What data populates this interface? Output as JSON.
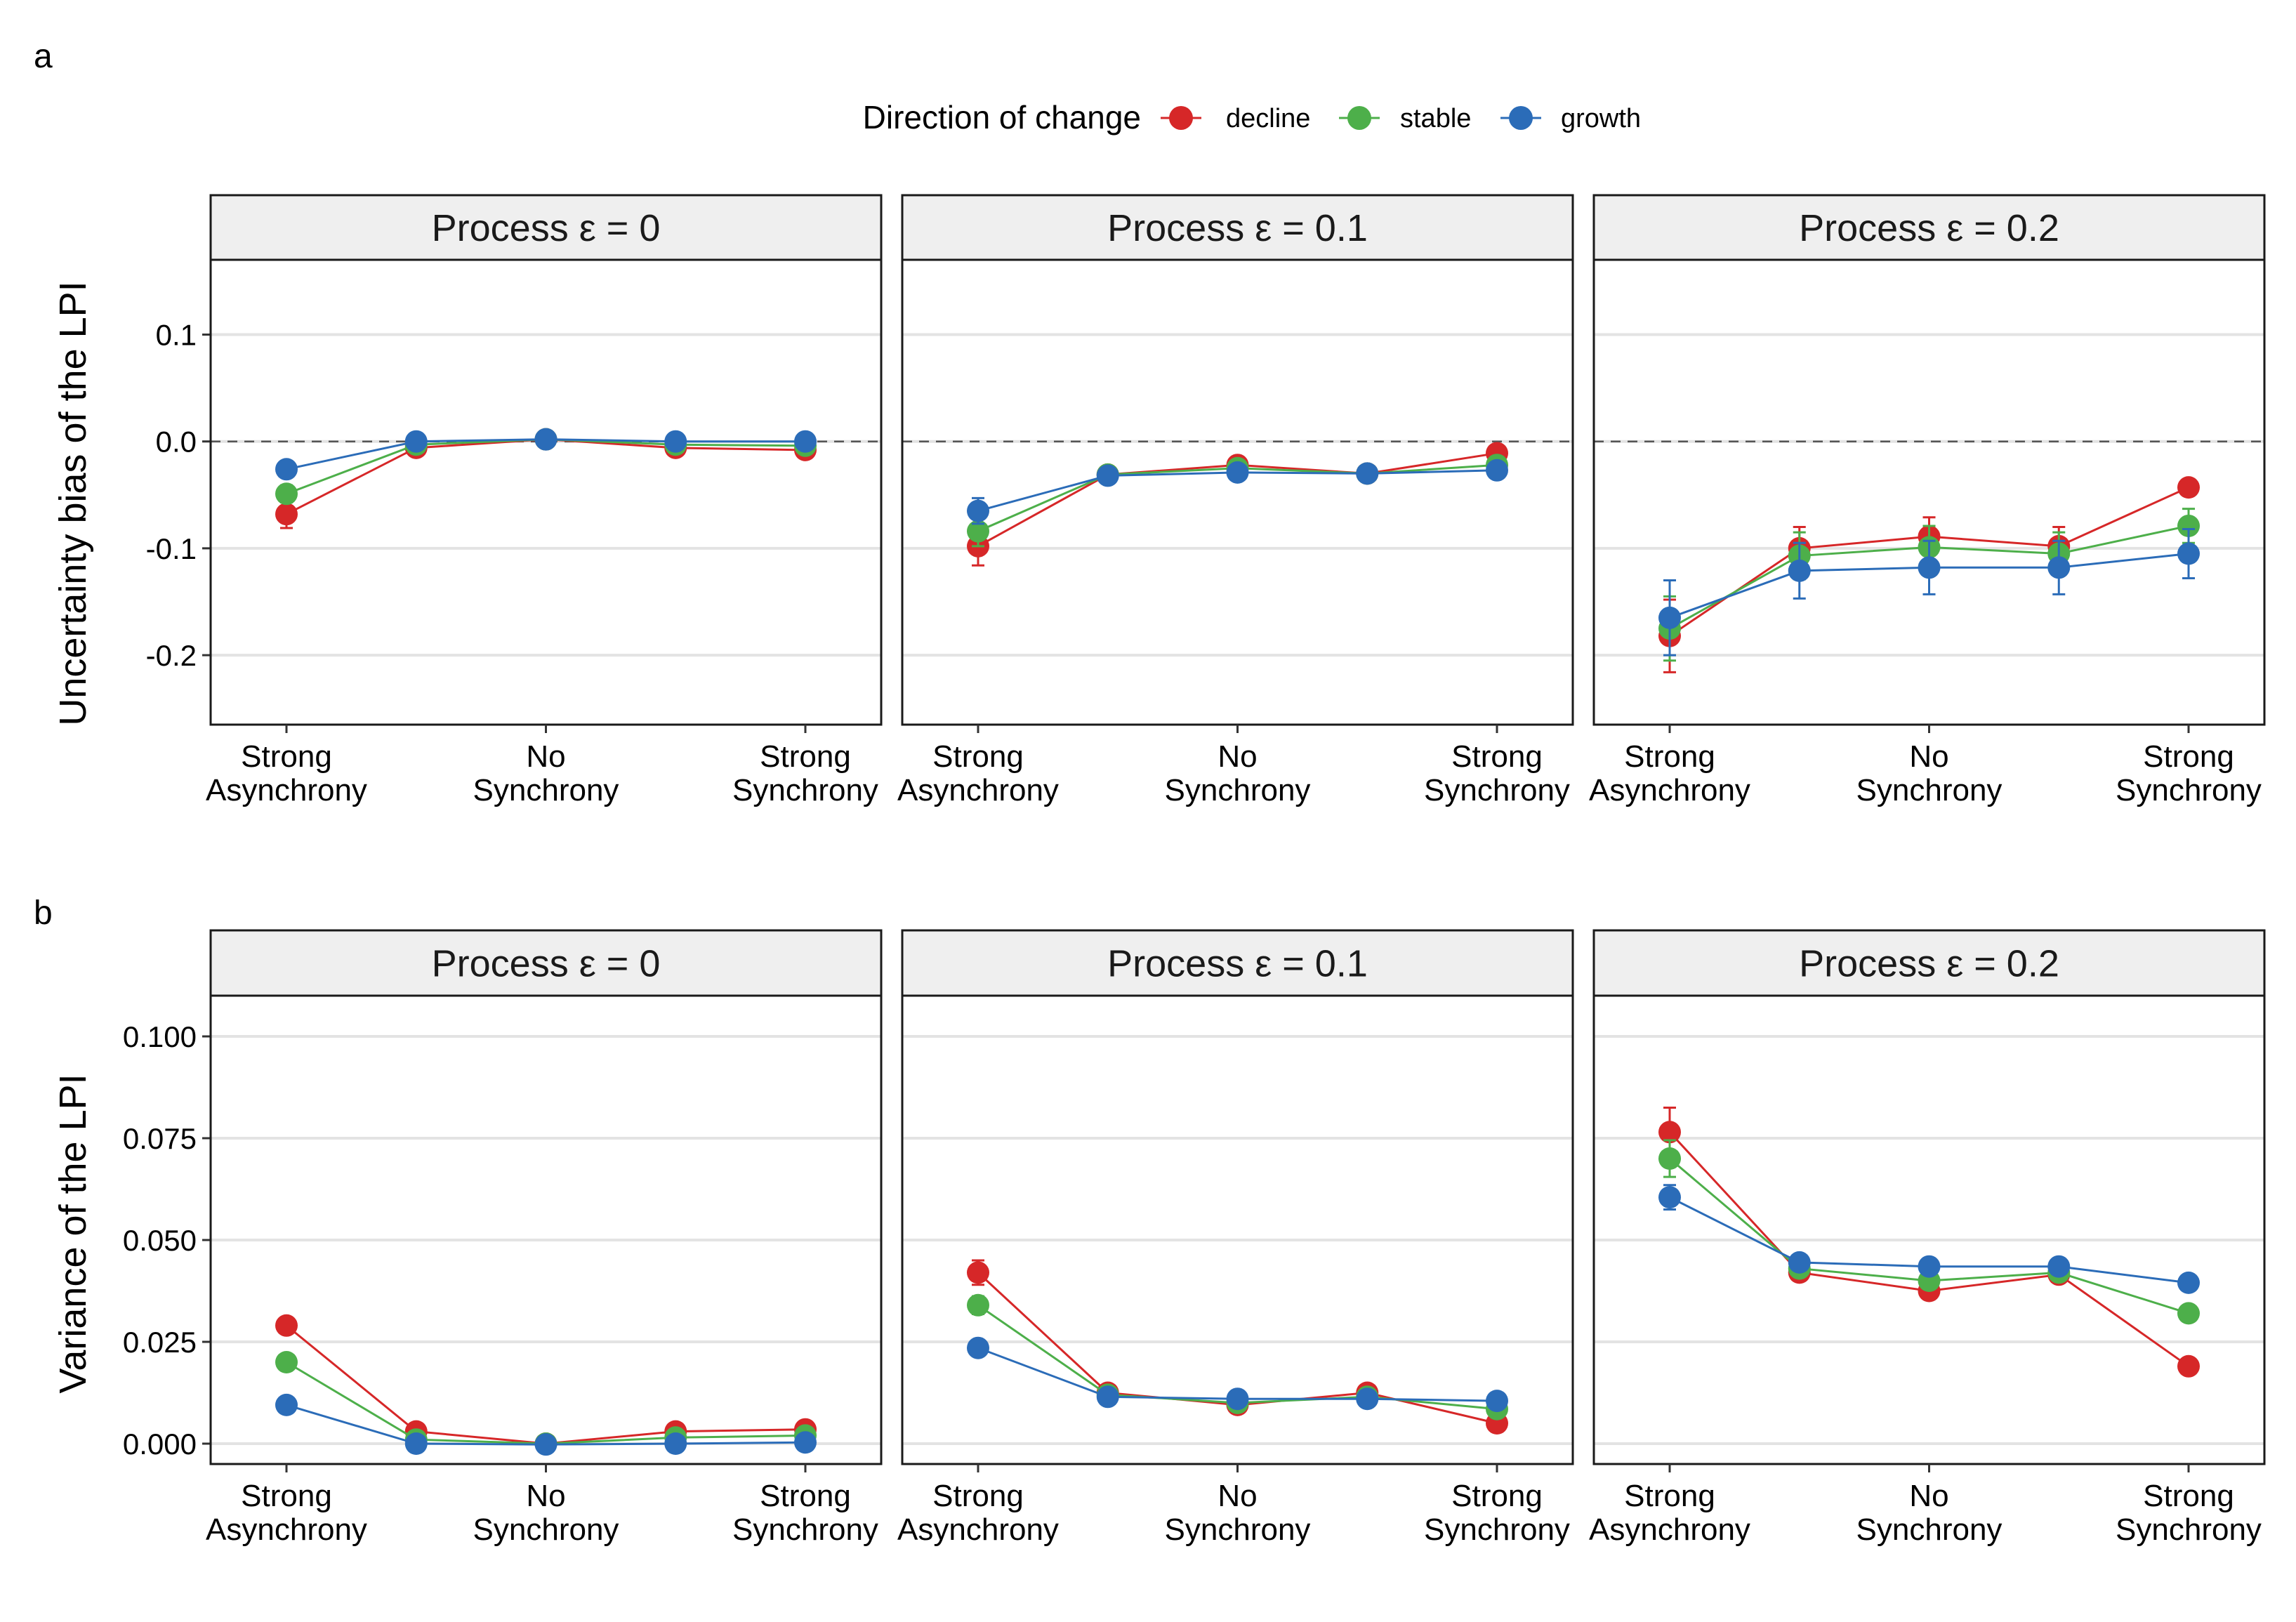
{
  "legend": {
    "title": "Direction of change",
    "items": [
      {
        "label": "decline",
        "color": "#D62728"
      },
      {
        "label": "stable",
        "color": "#4DAF4A"
      },
      {
        "label": "growth",
        "color": "#2B6CB8"
      }
    ]
  },
  "panel_labels": [
    "a",
    "b"
  ],
  "facet_titles": [
    "Process ε = 0",
    "Process ε = 0.1",
    "Process ε = 0.2"
  ],
  "x_tick_labels": [
    {
      "line1": "Strong",
      "line2": "Asynchrony"
    },
    {
      "line1": "No",
      "line2": "Synchrony"
    },
    {
      "line1": "Strong",
      "line2": "Synchrony"
    }
  ],
  "chart_data": [
    {
      "type": "line",
      "panel": "a",
      "ylabel": "Uncertainty bias of the LPI",
      "ylim": [
        -0.265,
        0.17
      ],
      "yticks": [
        0.1,
        0.0,
        -0.1,
        -0.2
      ],
      "ytick_labels": [
        "0.1",
        "0.0",
        "-0.1",
        "-0.2"
      ],
      "reference_line": 0,
      "x": [
        1,
        2,
        3,
        4,
        5
      ],
      "facets": [
        {
          "title": "Process ε = 0",
          "series": [
            {
              "name": "decline",
              "values": [
                -0.068,
                -0.006,
                0.002,
                -0.006,
                -0.008
              ],
              "err": [
                0.013,
                0.003,
                0.002,
                0.003,
                0.003
              ]
            },
            {
              "name": "stable",
              "values": [
                -0.049,
                -0.003,
                0.002,
                -0.003,
                -0.004
              ],
              "err": [
                0.008,
                0.002,
                0.002,
                0.002,
                0.002
              ]
            },
            {
              "name": "growth",
              "values": [
                -0.026,
                0.0,
                0.002,
                0.0,
                0.0
              ],
              "err": [
                0.006,
                0.002,
                0.002,
                0.002,
                0.002
              ]
            }
          ]
        },
        {
          "title": "Process ε = 0.1",
          "series": [
            {
              "name": "decline",
              "values": [
                -0.098,
                -0.031,
                -0.022,
                -0.03,
                -0.011
              ],
              "err": [
                0.018,
                0.004,
                0.004,
                0.004,
                0.004
              ]
            },
            {
              "name": "stable",
              "values": [
                -0.084,
                -0.031,
                -0.025,
                -0.03,
                -0.022
              ],
              "err": [
                0.014,
                0.004,
                0.004,
                0.004,
                0.004
              ]
            },
            {
              "name": "growth",
              "values": [
                -0.065,
                -0.032,
                -0.029,
                -0.03,
                -0.027
              ],
              "err": [
                0.012,
                0.004,
                0.004,
                0.004,
                0.004
              ]
            }
          ]
        },
        {
          "title": "Process ε = 0.2",
          "series": [
            {
              "name": "decline",
              "values": [
                -0.182,
                -0.1,
                -0.089,
                -0.098,
                -0.043
              ],
              "err": [
                0.034,
                0.02,
                0.018,
                0.018,
                0.006
              ]
            },
            {
              "name": "stable",
              "values": [
                -0.175,
                -0.107,
                -0.099,
                -0.105,
                -0.079
              ],
              "err": [
                0.03,
                0.022,
                0.02,
                0.02,
                0.016
              ]
            },
            {
              "name": "growth",
              "values": [
                -0.165,
                -0.121,
                -0.118,
                -0.118,
                -0.105
              ],
              "err": [
                0.035,
                0.026,
                0.025,
                0.025,
                0.023
              ]
            }
          ]
        }
      ]
    },
    {
      "type": "line",
      "panel": "b",
      "ylabel": "Variance of the LPI",
      "ylim": [
        -0.005,
        0.11
      ],
      "yticks": [
        0.1,
        0.075,
        0.05,
        0.025,
        0.0
      ],
      "ytick_labels": [
        "0.100",
        "0.075",
        "0.050",
        "0.025",
        "0.000"
      ],
      "x": [
        1,
        2,
        3,
        4,
        5
      ],
      "facets": [
        {
          "title": "Process ε = 0",
          "series": [
            {
              "name": "decline",
              "values": [
                0.029,
                0.003,
                0.0,
                0.003,
                0.0035
              ],
              "err": [
                0.0015,
                0.0005,
                0.0003,
                0.0005,
                0.0005
              ]
            },
            {
              "name": "stable",
              "values": [
                0.02,
                0.001,
                0.0,
                0.0015,
                0.002
              ],
              "err": [
                0.0012,
                0.0004,
                0.0003,
                0.0004,
                0.0004
              ]
            },
            {
              "name": "growth",
              "values": [
                0.0095,
                0.0,
                -0.0002,
                0.0,
                0.0003
              ],
              "err": [
                0.0008,
                0.0003,
                0.0003,
                0.0003,
                0.0003
              ]
            }
          ]
        },
        {
          "title": "Process ε = 0.1",
          "series": [
            {
              "name": "decline",
              "values": [
                0.042,
                0.0125,
                0.0095,
                0.0125,
                0.005
              ],
              "err": [
                0.003,
                0.001,
                0.001,
                0.001,
                0.0008
              ]
            },
            {
              "name": "stable",
              "values": [
                0.034,
                0.012,
                0.01,
                0.0115,
                0.0085
              ],
              "err": [
                0.0022,
                0.0009,
                0.0009,
                0.0009,
                0.0008
              ]
            },
            {
              "name": "growth",
              "values": [
                0.0235,
                0.0115,
                0.011,
                0.011,
                0.0105
              ],
              "err": [
                0.0015,
                0.0009,
                0.0009,
                0.0009,
                0.0009
              ]
            }
          ]
        },
        {
          "title": "Process ε = 0.2",
          "series": [
            {
              "name": "decline",
              "values": [
                0.0765,
                0.042,
                0.0375,
                0.0415,
                0.019
              ],
              "err": [
                0.006,
                0.002,
                0.002,
                0.002,
                0.0012
              ]
            },
            {
              "name": "stable",
              "values": [
                0.07,
                0.043,
                0.04,
                0.042,
                0.032
              ],
              "err": [
                0.0045,
                0.002,
                0.002,
                0.002,
                0.0015
              ]
            },
            {
              "name": "growth",
              "values": [
                0.0605,
                0.0445,
                0.0435,
                0.0435,
                0.0395
              ],
              "err": [
                0.003,
                0.0018,
                0.0018,
                0.0018,
                0.0016
              ]
            }
          ]
        }
      ]
    }
  ]
}
